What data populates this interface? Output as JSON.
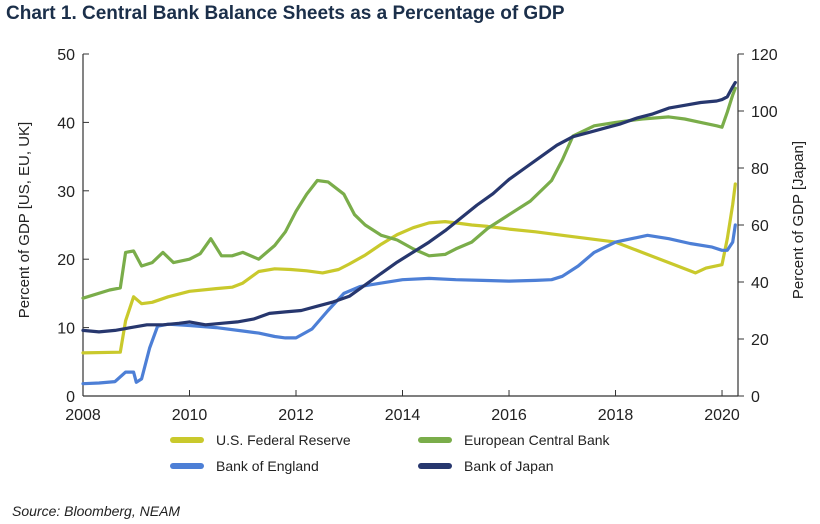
{
  "title": "Chart 1. Central Bank Balance Sheets as a Percentage of GDP",
  "source": "Source: Bloomberg, NEAM",
  "chart_data": {
    "type": "line",
    "title": "Chart 1. Central Bank Balance Sheets as a Percentage of GDP",
    "xlabel": "",
    "ylabel": "Percent of GDP [US, EU, UK]",
    "y2label": "Percent of GDP [Japan]",
    "xlim": [
      2008,
      2020.3
    ],
    "ylim": [
      0,
      50
    ],
    "y2lim": [
      0,
      120
    ],
    "x_ticks": [
      2008,
      2010,
      2012,
      2014,
      2016,
      2018,
      2020
    ],
    "y_ticks": [
      0,
      10,
      20,
      30,
      40,
      50
    ],
    "y2_ticks": [
      0,
      20,
      40,
      60,
      80,
      100,
      120
    ],
    "grid": false,
    "legend_position": "bottom",
    "series": [
      {
        "name": "U.S. Federal Reserve",
        "axis": "left",
        "color": "#c9c92c",
        "x": [
          2008.0,
          2008.7,
          2008.8,
          2008.95,
          2009.1,
          2009.3,
          2009.6,
          2010.0,
          2010.5,
          2010.8,
          2011.0,
          2011.3,
          2011.6,
          2011.9,
          2012.2,
          2012.5,
          2012.8,
          2013.0,
          2013.3,
          2013.6,
          2013.9,
          2014.2,
          2014.5,
          2014.8,
          2015.0,
          2015.3,
          2015.6,
          2016.0,
          2016.5,
          2017.0,
          2017.5,
          2018.0,
          2018.5,
          2019.0,
          2019.3,
          2019.5,
          2019.7,
          2020.0,
          2020.1,
          2020.2,
          2020.25
        ],
        "values": [
          6.3,
          6.4,
          11.0,
          14.5,
          13.5,
          13.7,
          14.5,
          15.3,
          15.7,
          15.9,
          16.5,
          18.2,
          18.6,
          18.5,
          18.3,
          18.0,
          18.5,
          19.3,
          20.6,
          22.2,
          23.6,
          24.6,
          25.3,
          25.5,
          25.3,
          25.0,
          24.8,
          24.4,
          24.0,
          23.5,
          23.0,
          22.5,
          21.0,
          19.5,
          18.6,
          18.0,
          18.7,
          19.2,
          23.0,
          28.0,
          31.0
        ]
      },
      {
        "name": "European Central Bank",
        "axis": "left",
        "color": "#7aad4a",
        "x": [
          2008.0,
          2008.5,
          2008.7,
          2008.8,
          2008.95,
          2009.1,
          2009.3,
          2009.5,
          2009.7,
          2010.0,
          2010.2,
          2010.4,
          2010.6,
          2010.8,
          2011.0,
          2011.3,
          2011.6,
          2011.8,
          2012.0,
          2012.2,
          2012.4,
          2012.6,
          2012.9,
          2013.1,
          2013.3,
          2013.6,
          2013.9,
          2014.2,
          2014.5,
          2014.8,
          2015.0,
          2015.3,
          2015.6,
          2016.0,
          2016.4,
          2016.8,
          2017.0,
          2017.2,
          2017.6,
          2018.0,
          2018.5,
          2019.0,
          2019.3,
          2019.6,
          2019.9,
          2020.0,
          2020.1,
          2020.2,
          2020.25
        ],
        "values": [
          14.3,
          15.5,
          15.8,
          21.0,
          21.2,
          19.0,
          19.5,
          21.0,
          19.5,
          20.0,
          20.8,
          23.0,
          20.5,
          20.5,
          21.0,
          20.0,
          22.0,
          24.0,
          27.0,
          29.5,
          31.5,
          31.3,
          29.5,
          26.5,
          25.0,
          23.5,
          22.8,
          21.5,
          20.5,
          20.7,
          21.5,
          22.5,
          24.5,
          26.5,
          28.5,
          31.5,
          34.5,
          38.0,
          39.5,
          40.0,
          40.5,
          40.8,
          40.5,
          40.0,
          39.5,
          39.3,
          41.5,
          44.0,
          45.0
        ]
      },
      {
        "name": "Bank of England",
        "axis": "left",
        "color": "#4d7fd6",
        "x": [
          2008.0,
          2008.3,
          2008.6,
          2008.8,
          2008.95,
          2009.0,
          2009.1,
          2009.25,
          2009.4,
          2009.6,
          2010.0,
          2010.5,
          2011.0,
          2011.3,
          2011.6,
          2011.8,
          2012.0,
          2012.3,
          2012.6,
          2012.9,
          2013.2,
          2013.6,
          2014.0,
          2014.5,
          2015.0,
          2015.5,
          2016.0,
          2016.5,
          2016.8,
          2017.0,
          2017.3,
          2017.6,
          2018.0,
          2018.3,
          2018.6,
          2019.0,
          2019.4,
          2019.8,
          2020.0,
          2020.1,
          2020.2,
          2020.25
        ],
        "values": [
          1.8,
          1.9,
          2.1,
          3.5,
          3.5,
          2.0,
          2.5,
          7.0,
          10.2,
          10.5,
          10.3,
          10.0,
          9.5,
          9.2,
          8.7,
          8.5,
          8.5,
          9.8,
          12.5,
          15.0,
          16.0,
          16.5,
          17.0,
          17.2,
          17.0,
          16.9,
          16.8,
          16.9,
          17.0,
          17.5,
          19.0,
          21.0,
          22.5,
          23.0,
          23.5,
          23.0,
          22.3,
          21.8,
          21.3,
          21.3,
          22.5,
          25.0
        ]
      },
      {
        "name": "Bank of Japan",
        "axis": "right",
        "color": "#27376e",
        "x": [
          2008.0,
          2008.3,
          2008.6,
          2008.9,
          2009.2,
          2009.5,
          2009.8,
          2010.0,
          2010.3,
          2010.6,
          2010.9,
          2011.2,
          2011.5,
          2011.8,
          2012.1,
          2012.4,
          2012.7,
          2013.0,
          2013.3,
          2013.6,
          2013.9,
          2014.2,
          2014.5,
          2014.8,
          2015.1,
          2015.4,
          2015.7,
          2016.0,
          2016.3,
          2016.6,
          2016.9,
          2017.2,
          2017.5,
          2017.8,
          2018.1,
          2018.4,
          2018.7,
          2019.0,
          2019.3,
          2019.6,
          2019.9,
          2020.0,
          2020.1,
          2020.2,
          2020.25
        ],
        "values": [
          23.0,
          22.5,
          23.0,
          24.0,
          25.0,
          25.0,
          25.5,
          26.0,
          25.0,
          25.5,
          26.0,
          27.0,
          29.0,
          29.5,
          30.0,
          31.5,
          33.0,
          35.0,
          39.0,
          43.0,
          47.0,
          50.5,
          54.0,
          58.0,
          62.5,
          67.0,
          71.0,
          76.0,
          80.0,
          84.0,
          88.0,
          91.0,
          92.5,
          94.0,
          95.5,
          97.5,
          99.0,
          101.0,
          102.0,
          103.0,
          103.5,
          104.0,
          105.0,
          108.5,
          110.0
        ]
      }
    ]
  }
}
